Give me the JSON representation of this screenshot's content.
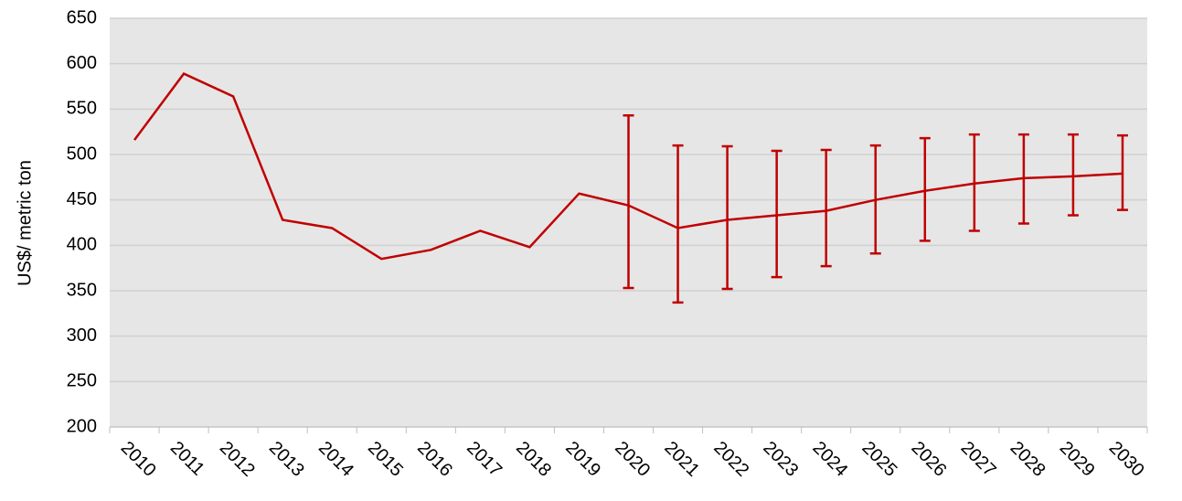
{
  "chart_data": {
    "type": "line",
    "y_label": "US$/ metric ton",
    "categories": [
      "2010",
      "2011",
      "2012",
      "2013",
      "2014",
      "2015",
      "2016",
      "2017",
      "2018",
      "2019",
      "2020",
      "2021",
      "2022",
      "2023",
      "2024",
      "2025",
      "2026",
      "2027",
      "2028",
      "2029",
      "2030"
    ],
    "series": [
      {
        "color": "#c00000",
        "values": [
          516,
          589,
          564,
          428,
          419,
          385,
          395,
          416,
          398,
          457,
          444,
          419,
          428,
          433,
          438,
          450,
          460,
          468,
          474,
          476,
          479
        ],
        "upper": [
          null,
          null,
          null,
          null,
          null,
          null,
          null,
          null,
          null,
          null,
          543,
          510,
          509,
          504,
          505,
          510,
          518,
          522,
          522,
          522,
          521
        ],
        "lower": [
          null,
          null,
          null,
          null,
          null,
          null,
          null,
          null,
          null,
          null,
          353,
          337,
          352,
          365,
          377,
          391,
          405,
          416,
          424,
          433,
          439
        ]
      }
    ],
    "ylim": [
      200,
      650
    ],
    "yticks": [
      200,
      250,
      300,
      350,
      400,
      450,
      500,
      550,
      600,
      650
    ],
    "grid": true,
    "background": "#e6e6e6"
  }
}
